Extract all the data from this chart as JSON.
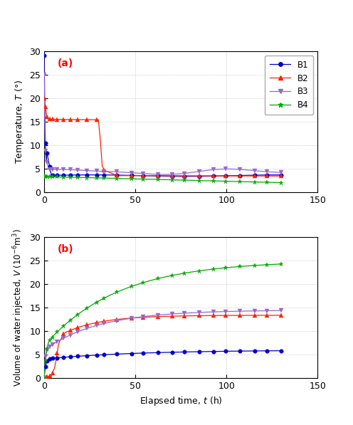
{
  "title_a": "(a)",
  "title_b": "(b)",
  "xlabel": "Elapsed time, $t$ (h)",
  "ylabel_a": "Temperature, $T$ (°)",
  "ylabel_b": "Volume of water injected, $V$ (10$^{-6}$m$^3$)",
  "xlim": [
    0,
    150
  ],
  "ylim_a": [
    0,
    30
  ],
  "ylim_b": [
    0,
    30
  ],
  "xticks": [
    0,
    50,
    100,
    150
  ],
  "yticks_a": [
    0,
    5,
    10,
    15,
    20,
    25,
    30
  ],
  "yticks_b": [
    0,
    5,
    10,
    15,
    20,
    25,
    30
  ],
  "colors": {
    "B1": "#0000cc",
    "B2": "#ff2200",
    "B3": "#9966cc",
    "B4": "#00aa00"
  },
  "background_color": "#ffffff",
  "grid_color": "#bbbbbb"
}
